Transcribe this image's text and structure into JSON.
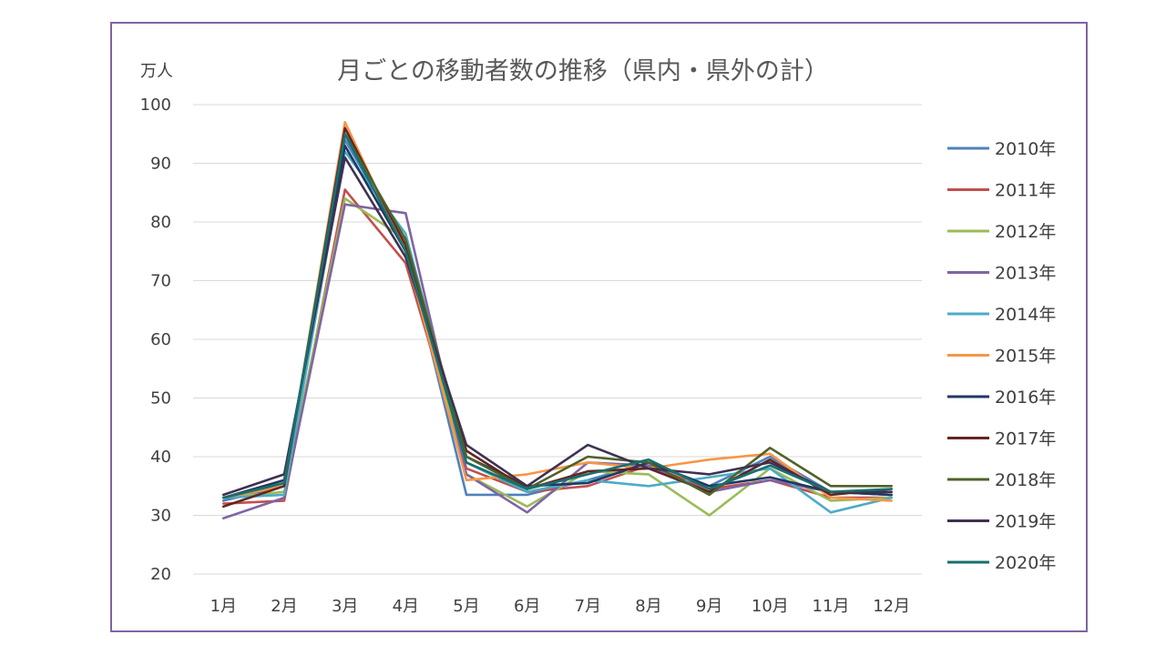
{
  "chart_data": {
    "type": "line",
    "title": "月ごとの移動者数の推移（県内・県外の計）",
    "ylabel": "万人",
    "xlabel": "",
    "ylim": [
      20,
      100
    ],
    "yticks": [
      100,
      90,
      80,
      70,
      60,
      50,
      40,
      30,
      20
    ],
    "grid": true,
    "legend_position": "right",
    "categories": [
      "1月",
      "2月",
      "3月",
      "4月",
      "5月",
      "6月",
      "7月",
      "8月",
      "9月",
      "10月",
      "11月",
      "12月"
    ],
    "series": [
      {
        "name": "2010年",
        "color": "#4f81bd",
        "values": [
          32.5,
          35,
          94,
          76,
          33.5,
          33.5,
          36,
          39,
          35,
          40,
          34,
          33.5
        ]
      },
      {
        "name": "2011年",
        "color": "#c0504d",
        "values": [
          32,
          32.5,
          85.5,
          73,
          38,
          34,
          35,
          38.5,
          34.5,
          36,
          33,
          33
        ]
      },
      {
        "name": "2012年",
        "color": "#9bbb59",
        "values": [
          33,
          34,
          84,
          77,
          37,
          31.5,
          37.5,
          37,
          30,
          38,
          32.5,
          33
        ]
      },
      {
        "name": "2013年",
        "color": "#8064a2",
        "values": [
          29.5,
          33,
          83,
          81.5,
          37,
          30.5,
          39,
          38.5,
          34,
          36,
          34,
          33.5
        ]
      },
      {
        "name": "2014年",
        "color": "#4bacc6",
        "values": [
          33,
          33.5,
          92,
          78,
          39,
          34,
          36,
          35,
          36.5,
          38,
          30.5,
          33
        ]
      },
      {
        "name": "2015年",
        "color": "#f79646",
        "values": [
          33,
          35,
          97,
          75,
          36,
          37,
          39,
          38,
          39.5,
          40.5,
          33,
          32.5
        ]
      },
      {
        "name": "2016年",
        "color": "#1f3864",
        "values": [
          33,
          36,
          93,
          75,
          40,
          35,
          35.5,
          39,
          35,
          36.5,
          34,
          33.5
        ]
      },
      {
        "name": "2017年",
        "color": "#632523",
        "values": [
          31.5,
          35,
          96,
          76,
          41,
          34.5,
          37.5,
          38,
          34,
          39.5,
          33.5,
          34.5
        ]
      },
      {
        "name": "2018年",
        "color": "#4f6228",
        "values": [
          33,
          35.5,
          95,
          77,
          40,
          34.5,
          40,
          39,
          33.5,
          41.5,
          35,
          35
        ]
      },
      {
        "name": "2019年",
        "color": "#3f3151",
        "values": [
          33.5,
          37,
          91,
          74,
          42,
          35,
          42,
          38,
          37,
          39,
          34,
          34
        ]
      },
      {
        "name": "2020年",
        "color": "#17706f",
        "values": [
          33,
          35.5,
          95,
          75,
          39,
          34.5,
          37,
          39.5,
          34.5,
          38.5,
          34,
          34.5
        ]
      }
    ]
  }
}
